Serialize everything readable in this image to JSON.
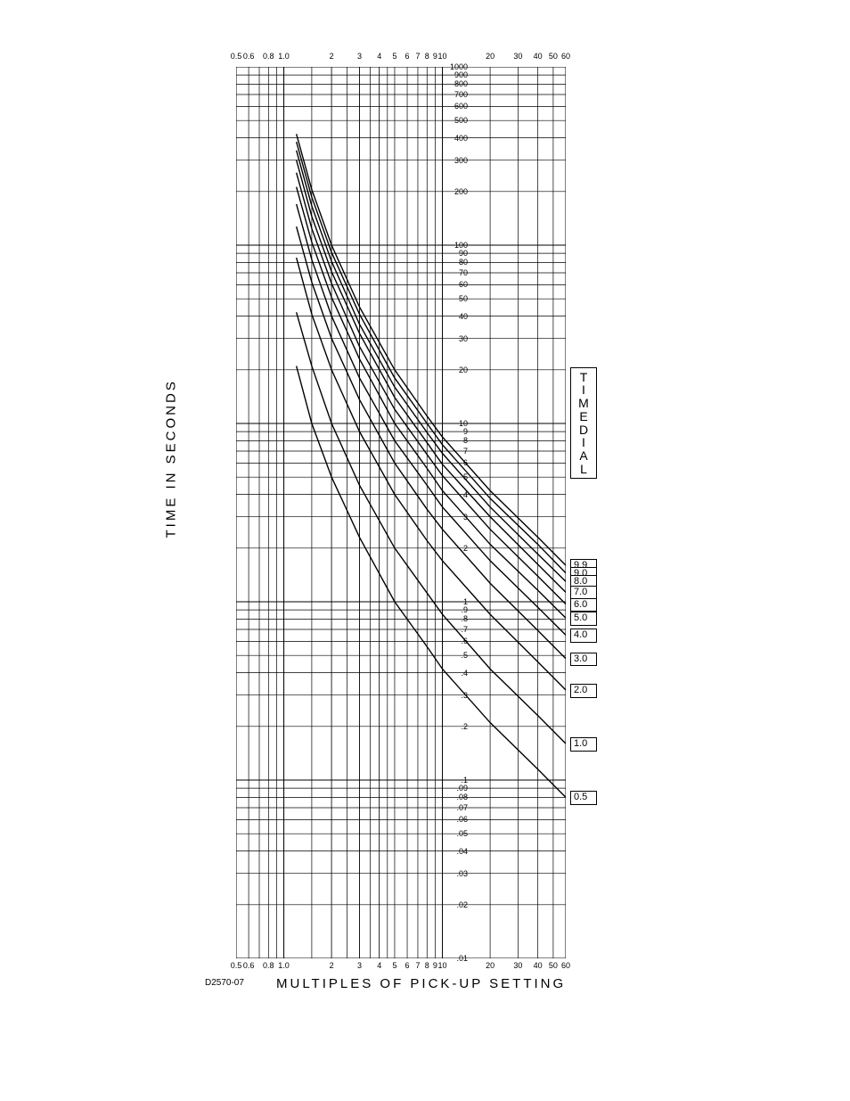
{
  "chart": {
    "type": "line",
    "background_color": "#ffffff",
    "grid_color": "#000000",
    "curve_color": "#000000",
    "curve_stroke_width": 1.4,
    "grid_stroke_width": 0.7,
    "grid_major_stroke_width": 1.0,
    "x_axis": {
      "label": "MULTIPLES OF PICK-UP SETTING",
      "scale": "log",
      "min": 0.5,
      "max": 60,
      "ticks": [
        0.5,
        0.6,
        0.8,
        1.0,
        2,
        3,
        4,
        5,
        6,
        7,
        8,
        9,
        10,
        20,
        30,
        40,
        50,
        60
      ],
      "tick_labels": [
        "0.5",
        "0.6",
        "0.8",
        "1.0",
        "2",
        "3",
        "4",
        "5",
        "6",
        "7",
        "8",
        "9",
        "10",
        "20",
        "30",
        "40",
        "50",
        "60"
      ]
    },
    "y_axis": {
      "label": "TIME IN SECONDS",
      "scale": "log",
      "min": 0.01,
      "max": 1000,
      "ticks": [
        0.01,
        0.02,
        0.03,
        0.04,
        0.05,
        0.06,
        0.07,
        0.08,
        0.09,
        0.1,
        0.2,
        0.3,
        0.4,
        0.5,
        0.6,
        0.7,
        0.8,
        0.9,
        1,
        2,
        3,
        4,
        5,
        6,
        7,
        8,
        9,
        10,
        20,
        30,
        40,
        50,
        60,
        70,
        80,
        90,
        100,
        200,
        300,
        400,
        500,
        600,
        700,
        800,
        900,
        1000
      ],
      "tick_labels": [
        ".01",
        ".02",
        ".03",
        ".04",
        ".05",
        ".06",
        ".07",
        ".08",
        ".09",
        ".1",
        ".2",
        ".3",
        ".4",
        ".5",
        ".6",
        ".7",
        ".8",
        ".9",
        "1",
        "2",
        "3",
        "4",
        "5",
        "6",
        "7",
        "8",
        "9",
        "10",
        "20",
        "30",
        "40",
        "50",
        "60",
        "70",
        "80",
        "90",
        "100",
        "200",
        "300",
        "400",
        "500",
        "600",
        "700",
        "800",
        "900",
        "1000"
      ]
    },
    "right_label": {
      "text": "TIME DIAL",
      "letters": [
        "T",
        "I",
        "M",
        "E",
        "D",
        "I",
        "A",
        "L"
      ]
    },
    "drawing_id": "D2570-07",
    "curves": [
      {
        "label": "9.9",
        "time_dial": 9.9,
        "points": [
          [
            1.2,
            420
          ],
          [
            1.5,
            205
          ],
          [
            2,
            100
          ],
          [
            3,
            45
          ],
          [
            5,
            20
          ],
          [
            8,
            11
          ],
          [
            10,
            8.4
          ],
          [
            20,
            4.2
          ],
          [
            40,
            2.3
          ],
          [
            60,
            1.6
          ]
        ]
      },
      {
        "label": "9.0",
        "time_dial": 9.0,
        "points": [
          [
            1.2,
            380
          ],
          [
            1.5,
            186
          ],
          [
            2,
            91
          ],
          [
            3,
            41
          ],
          [
            5,
            18
          ],
          [
            8,
            10
          ],
          [
            10,
            7.6
          ],
          [
            20,
            3.8
          ],
          [
            40,
            2.1
          ],
          [
            60,
            1.45
          ]
        ]
      },
      {
        "label": "8.0",
        "time_dial": 8.0,
        "points": [
          [
            1.2,
            340
          ],
          [
            1.5,
            166
          ],
          [
            2,
            81
          ],
          [
            3,
            36
          ],
          [
            5,
            16
          ],
          [
            8,
            8.9
          ],
          [
            10,
            6.8
          ],
          [
            20,
            3.4
          ],
          [
            40,
            1.85
          ],
          [
            60,
            1.3
          ]
        ]
      },
      {
        "label": "7.0",
        "time_dial": 7.0,
        "points": [
          [
            1.2,
            300
          ],
          [
            1.5,
            145
          ],
          [
            2,
            71
          ],
          [
            3,
            32
          ],
          [
            5,
            14
          ],
          [
            8,
            7.8
          ],
          [
            10,
            5.9
          ],
          [
            20,
            3.0
          ],
          [
            40,
            1.62
          ],
          [
            60,
            1.13
          ]
        ]
      },
      {
        "label": "6.0",
        "time_dial": 6.0,
        "points": [
          [
            1.2,
            255
          ],
          [
            1.5,
            124
          ],
          [
            2,
            61
          ],
          [
            3,
            27
          ],
          [
            5,
            12
          ],
          [
            8,
            6.7
          ],
          [
            10,
            5.1
          ],
          [
            20,
            2.55
          ],
          [
            40,
            1.39
          ],
          [
            60,
            0.97
          ]
        ]
      },
      {
        "label": "5.0",
        "time_dial": 5.0,
        "points": [
          [
            1.2,
            212
          ],
          [
            1.5,
            104
          ],
          [
            2,
            51
          ],
          [
            3,
            23
          ],
          [
            5,
            10
          ],
          [
            8,
            5.6
          ],
          [
            10,
            4.2
          ],
          [
            20,
            2.1
          ],
          [
            40,
            1.16
          ],
          [
            60,
            0.81
          ]
        ]
      },
      {
        "label": "4.0",
        "time_dial": 4.0,
        "points": [
          [
            1.2,
            170
          ],
          [
            1.5,
            83
          ],
          [
            2,
            40
          ],
          [
            3,
            18
          ],
          [
            5,
            8
          ],
          [
            8,
            4.5
          ],
          [
            10,
            3.4
          ],
          [
            20,
            1.7
          ],
          [
            40,
            0.93
          ],
          [
            60,
            0.65
          ]
        ]
      },
      {
        "label": "3.0",
        "time_dial": 3.0,
        "points": [
          [
            1.2,
            127
          ],
          [
            1.5,
            62
          ],
          [
            2,
            30
          ],
          [
            3,
            13.6
          ],
          [
            5,
            6
          ],
          [
            8,
            3.3
          ],
          [
            10,
            2.55
          ],
          [
            20,
            1.27
          ],
          [
            40,
            0.69
          ],
          [
            60,
            0.48
          ]
        ]
      },
      {
        "label": "2.0",
        "time_dial": 2.0,
        "points": [
          [
            1.2,
            85
          ],
          [
            1.5,
            41
          ],
          [
            2,
            20
          ],
          [
            3,
            9
          ],
          [
            5,
            4
          ],
          [
            8,
            2.2
          ],
          [
            10,
            1.7
          ],
          [
            20,
            0.85
          ],
          [
            40,
            0.46
          ],
          [
            60,
            0.32
          ]
        ]
      },
      {
        "label": "1.0",
        "time_dial": 1.0,
        "points": [
          [
            1.2,
            42
          ],
          [
            1.5,
            21
          ],
          [
            2,
            10
          ],
          [
            3,
            4.5
          ],
          [
            5,
            2
          ],
          [
            8,
            1.12
          ],
          [
            10,
            0.85
          ],
          [
            20,
            0.42
          ],
          [
            40,
            0.23
          ],
          [
            60,
            0.16
          ]
        ]
      },
      {
        "label": "0.5",
        "time_dial": 0.5,
        "points": [
          [
            1.2,
            21
          ],
          [
            1.5,
            10
          ],
          [
            2,
            5
          ],
          [
            3,
            2.3
          ],
          [
            5,
            1
          ],
          [
            8,
            0.56
          ],
          [
            10,
            0.42
          ],
          [
            20,
            0.21
          ],
          [
            40,
            0.115
          ],
          [
            60,
            0.08
          ]
        ]
      }
    ],
    "dial_box_y_at_x60": {
      "9.9": 1.6,
      "9.0": 1.45,
      "8.0": 1.3,
      "7.0": 1.13,
      "6.0": 0.97,
      "5.0": 0.81,
      "4.0": 0.65,
      "3.0": 0.48,
      "2.0": 0.32,
      "1.0": 0.16,
      "0.5": 0.08
    },
    "label_fontsize": 15,
    "tick_fontsize": 9,
    "dial_fontsize": 11
  }
}
